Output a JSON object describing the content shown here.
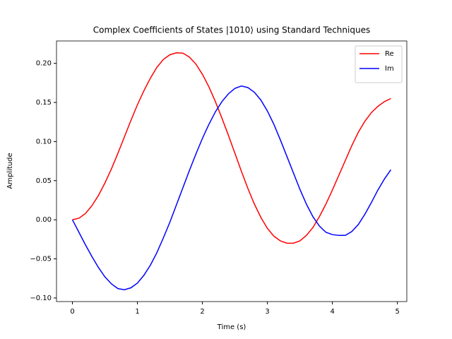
{
  "chart_data": {
    "type": "line",
    "title": "Complex Coefficients of States |1010⟩ using Standard Techniques",
    "x_label": "Time (s)",
    "y_label": "Amplitude",
    "x": [
      0,
      0.1,
      0.2,
      0.3,
      0.4,
      0.5,
      0.6,
      0.7,
      0.8,
      0.9,
      1.0,
      1.1,
      1.2,
      1.3,
      1.4,
      1.5,
      1.6,
      1.7,
      1.8,
      1.9,
      2.0,
      2.1,
      2.2,
      2.3,
      2.4,
      2.5,
      2.6,
      2.7,
      2.8,
      2.9,
      3.0,
      3.1,
      3.2,
      3.3,
      3.4,
      3.5,
      3.6,
      3.7,
      3.8,
      3.9,
      4.0,
      4.1,
      4.2,
      4.3,
      4.4,
      4.5,
      4.6,
      4.7,
      4.8,
      4.9
    ],
    "series": [
      {
        "name": "Re",
        "color": "#ff0000",
        "values": [
          0,
          0.002,
          0.008,
          0.018,
          0.031,
          0.047,
          0.065,
          0.085,
          0.106,
          0.127,
          0.147,
          0.165,
          0.181,
          0.195,
          0.205,
          0.211,
          0.2135,
          0.213,
          0.208,
          0.199,
          0.186,
          0.17,
          0.151,
          0.13,
          0.108,
          0.085,
          0.062,
          0.04,
          0.02,
          0.003,
          -0.011,
          -0.021,
          -0.027,
          -0.03,
          -0.03,
          -0.027,
          -0.02,
          -0.01,
          0.004,
          0.02,
          0.038,
          0.057,
          0.076,
          0.095,
          0.112,
          0.126,
          0.137,
          0.145,
          0.151,
          0.155
        ]
      },
      {
        "name": "Im",
        "color": "#0000ff",
        "values": [
          0,
          -0.016,
          -0.032,
          -0.047,
          -0.061,
          -0.073,
          -0.082,
          -0.088,
          -0.0895,
          -0.087,
          -0.081,
          -0.071,
          -0.058,
          -0.042,
          -0.023,
          -0.003,
          0.019,
          0.041,
          0.063,
          0.084,
          0.104,
          0.122,
          0.138,
          0.151,
          0.161,
          0.168,
          0.171,
          0.169,
          0.163,
          0.153,
          0.139,
          0.122,
          0.102,
          0.081,
          0.06,
          0.039,
          0.02,
          0.004,
          -0.008,
          -0.016,
          -0.019,
          -0.02,
          -0.02,
          -0.015,
          -0.006,
          0.007,
          0.022,
          0.038,
          0.052,
          0.064
        ]
      }
    ],
    "xlim": [
      -0.245,
      5.145
    ],
    "xticks": [
      0,
      1,
      2,
      3,
      4,
      5
    ],
    "ylim": [
      -0.1046,
      0.2286
    ],
    "yticks": [
      {
        "value": -0.1,
        "label": "−0.10"
      },
      {
        "value": -0.05,
        "label": "−0.05"
      },
      {
        "value": 0,
        "label": "0.00"
      },
      {
        "value": 0.05,
        "label": "0.05"
      },
      {
        "value": 0.1,
        "label": "0.10"
      },
      {
        "value": 0.15,
        "label": "0.15"
      },
      {
        "value": 0.2,
        "label": "0.20"
      }
    ],
    "legend": "upper right",
    "grid": false
  }
}
